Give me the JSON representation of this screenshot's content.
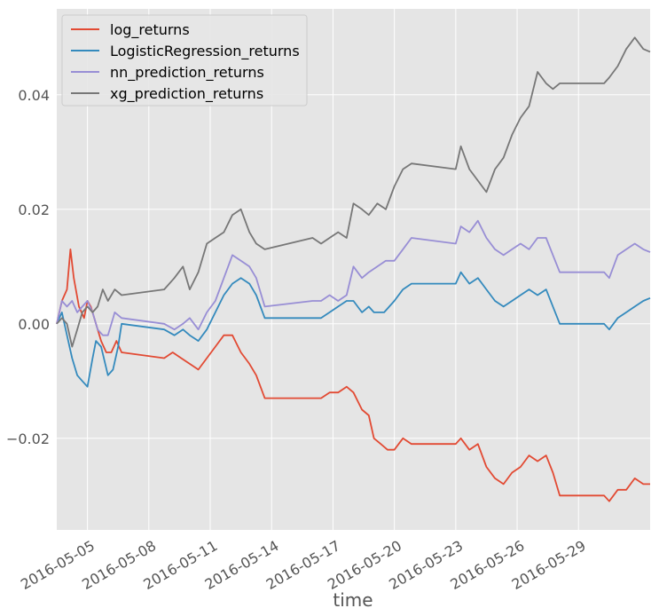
{
  "chart_data": {
    "type": "line",
    "title": "",
    "xlabel": "time",
    "ylabel": "",
    "xlim": [
      "2016-05-03T12:00",
      "2016-06-01T12:00"
    ],
    "ylim": [
      -0.036,
      0.055
    ],
    "grid": true,
    "legend_position": "top-left",
    "x_ticks": [
      "2016-05-05",
      "2016-05-08",
      "2016-05-11",
      "2016-05-14",
      "2016-05-17",
      "2016-05-20",
      "2016-05-23",
      "2016-05-26",
      "2016-05-29"
    ],
    "y_ticks": [
      -0.02,
      0.0,
      0.02,
      0.04
    ],
    "y_tick_labels": [
      "−0.02",
      "0.00",
      "0.02",
      "0.04"
    ],
    "series": [
      {
        "name": "log_returns",
        "color": "#E24A33",
        "points": [
          [
            "2016-05-03T12:00",
            0.0
          ],
          [
            "2016-05-03T18:00",
            0.004
          ],
          [
            "2016-05-04T00:00",
            0.006
          ],
          [
            "2016-05-04T04:00",
            0.013
          ],
          [
            "2016-05-04T08:00",
            0.008
          ],
          [
            "2016-05-04T14:00",
            0.003
          ],
          [
            "2016-05-04T20:00",
            0.001
          ],
          [
            "2016-05-05T00:00",
            0.004
          ],
          [
            "2016-05-05T04:00",
            0.003
          ],
          [
            "2016-05-05T10:00",
            0.0
          ],
          [
            "2016-05-05T16:00",
            -0.003
          ],
          [
            "2016-05-05T22:00",
            -0.005
          ],
          [
            "2016-05-06T04:00",
            -0.005
          ],
          [
            "2016-05-06T10:00",
            -0.003
          ],
          [
            "2016-05-06T16:00",
            -0.005
          ],
          [
            "2016-05-08T18:00",
            -0.006
          ],
          [
            "2016-05-09T04:00",
            -0.005
          ],
          [
            "2016-05-09T14:00",
            -0.006
          ],
          [
            "2016-05-10T00:00",
            -0.007
          ],
          [
            "2016-05-10T10:00",
            -0.008
          ],
          [
            "2016-05-10T20:00",
            -0.006
          ],
          [
            "2016-05-11T06:00",
            -0.004
          ],
          [
            "2016-05-11T16:00",
            -0.002
          ],
          [
            "2016-05-12T02:00",
            -0.002
          ],
          [
            "2016-05-12T12:00",
            -0.005
          ],
          [
            "2016-05-12T22:00",
            -0.007
          ],
          [
            "2016-05-13T06:00",
            -0.009
          ],
          [
            "2016-05-13T16:00",
            -0.013
          ],
          [
            "2016-05-16T00:00",
            -0.013
          ],
          [
            "2016-05-16T10:00",
            -0.013
          ],
          [
            "2016-05-16T20:00",
            -0.012
          ],
          [
            "2016-05-17T06:00",
            -0.012
          ],
          [
            "2016-05-17T16:00",
            -0.011
          ],
          [
            "2016-05-18T00:00",
            -0.012
          ],
          [
            "2016-05-18T10:00",
            -0.015
          ],
          [
            "2016-05-18T18:00",
            -0.016
          ],
          [
            "2016-05-19T00:00",
            -0.02
          ],
          [
            "2016-05-19T08:00",
            -0.021
          ],
          [
            "2016-05-19T16:00",
            -0.022
          ],
          [
            "2016-05-20T00:00",
            -0.022
          ],
          [
            "2016-05-20T10:00",
            -0.02
          ],
          [
            "2016-05-20T20:00",
            -0.021
          ],
          [
            "2016-05-23T00:00",
            -0.021
          ],
          [
            "2016-05-23T06:00",
            -0.02
          ],
          [
            "2016-05-23T16:00",
            -0.022
          ],
          [
            "2016-05-24T02:00",
            -0.021
          ],
          [
            "2016-05-24T12:00",
            -0.025
          ],
          [
            "2016-05-24T22:00",
            -0.027
          ],
          [
            "2016-05-25T08:00",
            -0.028
          ],
          [
            "2016-05-25T18:00",
            -0.026
          ],
          [
            "2016-05-26T04:00",
            -0.025
          ],
          [
            "2016-05-26T14:00",
            -0.023
          ],
          [
            "2016-05-27T00:00",
            -0.024
          ],
          [
            "2016-05-27T10:00",
            -0.023
          ],
          [
            "2016-05-27T18:00",
            -0.026
          ],
          [
            "2016-05-28T02:00",
            -0.03
          ],
          [
            "2016-05-30T06:00",
            -0.03
          ],
          [
            "2016-05-30T12:00",
            -0.031
          ],
          [
            "2016-05-30T22:00",
            -0.029
          ],
          [
            "2016-05-31T08:00",
            -0.029
          ],
          [
            "2016-05-31T18:00",
            -0.027
          ],
          [
            "2016-06-01T04:00",
            -0.028
          ],
          [
            "2016-06-01T12:00",
            -0.028
          ]
        ]
      },
      {
        "name": "LogisticRegression_returns",
        "color": "#348ABD",
        "points": [
          [
            "2016-05-03T12:00",
            0.0
          ],
          [
            "2016-05-03T18:00",
            0.002
          ],
          [
            "2016-05-04T00:00",
            -0.002
          ],
          [
            "2016-05-04T06:00",
            -0.006
          ],
          [
            "2016-05-04T12:00",
            -0.009
          ],
          [
            "2016-05-04T18:00",
            -0.01
          ],
          [
            "2016-05-05T00:00",
            -0.011
          ],
          [
            "2016-05-05T06:00",
            -0.006
          ],
          [
            "2016-05-05T10:00",
            -0.003
          ],
          [
            "2016-05-05T16:00",
            -0.004
          ],
          [
            "2016-05-06T00:00",
            -0.009
          ],
          [
            "2016-05-06T06:00",
            -0.008
          ],
          [
            "2016-05-06T12:00",
            -0.004
          ],
          [
            "2016-05-06T16:00",
            0.0
          ],
          [
            "2016-05-08T18:00",
            -0.001
          ],
          [
            "2016-05-09T06:00",
            -0.002
          ],
          [
            "2016-05-09T16:00",
            -0.001
          ],
          [
            "2016-05-10T00:00",
            -0.002
          ],
          [
            "2016-05-10T10:00",
            -0.003
          ],
          [
            "2016-05-10T20:00",
            -0.001
          ],
          [
            "2016-05-11T06:00",
            0.002
          ],
          [
            "2016-05-11T16:00",
            0.005
          ],
          [
            "2016-05-12T02:00",
            0.007
          ],
          [
            "2016-05-12T12:00",
            0.008
          ],
          [
            "2016-05-12T22:00",
            0.007
          ],
          [
            "2016-05-13T06:00",
            0.005
          ],
          [
            "2016-05-13T16:00",
            0.001
          ],
          [
            "2016-05-16T00:00",
            0.001
          ],
          [
            "2016-05-16T10:00",
            0.001
          ],
          [
            "2016-05-16T20:00",
            0.002
          ],
          [
            "2016-05-17T06:00",
            0.003
          ],
          [
            "2016-05-17T16:00",
            0.004
          ],
          [
            "2016-05-18T00:00",
            0.004
          ],
          [
            "2016-05-18T10:00",
            0.002
          ],
          [
            "2016-05-18T18:00",
            0.003
          ],
          [
            "2016-05-19T00:00",
            0.002
          ],
          [
            "2016-05-19T12:00",
            0.002
          ],
          [
            "2016-05-20T00:00",
            0.004
          ],
          [
            "2016-05-20T10:00",
            0.006
          ],
          [
            "2016-05-20T20:00",
            0.007
          ],
          [
            "2016-05-23T00:00",
            0.007
          ],
          [
            "2016-05-23T06:00",
            0.009
          ],
          [
            "2016-05-23T16:00",
            0.007
          ],
          [
            "2016-05-24T02:00",
            0.008
          ],
          [
            "2016-05-24T12:00",
            0.006
          ],
          [
            "2016-05-24T22:00",
            0.004
          ],
          [
            "2016-05-25T08:00",
            0.003
          ],
          [
            "2016-05-25T18:00",
            0.004
          ],
          [
            "2016-05-26T04:00",
            0.005
          ],
          [
            "2016-05-26T14:00",
            0.006
          ],
          [
            "2016-05-27T00:00",
            0.005
          ],
          [
            "2016-05-27T10:00",
            0.006
          ],
          [
            "2016-05-27T18:00",
            0.003
          ],
          [
            "2016-05-28T02:00",
            0.0
          ],
          [
            "2016-05-30T06:00",
            0.0
          ],
          [
            "2016-05-30T12:00",
            -0.001
          ],
          [
            "2016-05-30T22:00",
            0.001
          ],
          [
            "2016-05-31T08:00",
            0.002
          ],
          [
            "2016-05-31T18:00",
            0.003
          ],
          [
            "2016-06-01T04:00",
            0.004
          ],
          [
            "2016-06-01T12:00",
            0.0045
          ]
        ]
      },
      {
        "name": "nn_prediction_returns",
        "color": "#988ED5",
        "points": [
          [
            "2016-05-03T12:00",
            0.0
          ],
          [
            "2016-05-03T18:00",
            0.004
          ],
          [
            "2016-05-04T00:00",
            0.003
          ],
          [
            "2016-05-04T06:00",
            0.004
          ],
          [
            "2016-05-04T12:00",
            0.002
          ],
          [
            "2016-05-04T18:00",
            0.003
          ],
          [
            "2016-05-05T00:00",
            0.004
          ],
          [
            "2016-05-05T06:00",
            0.002
          ],
          [
            "2016-05-05T12:00",
            -0.001
          ],
          [
            "2016-05-05T18:00",
            -0.002
          ],
          [
            "2016-05-06T00:00",
            -0.002
          ],
          [
            "2016-05-06T08:00",
            0.002
          ],
          [
            "2016-05-06T16:00",
            0.001
          ],
          [
            "2016-05-08T18:00",
            0.0
          ],
          [
            "2016-05-09T06:00",
            -0.001
          ],
          [
            "2016-05-09T16:00",
            0.0
          ],
          [
            "2016-05-10T00:00",
            0.001
          ],
          [
            "2016-05-10T10:00",
            -0.001
          ],
          [
            "2016-05-10T20:00",
            0.002
          ],
          [
            "2016-05-11T06:00",
            0.004
          ],
          [
            "2016-05-11T16:00",
            0.008
          ],
          [
            "2016-05-12T02:00",
            0.012
          ],
          [
            "2016-05-12T12:00",
            0.011
          ],
          [
            "2016-05-12T22:00",
            0.01
          ],
          [
            "2016-05-13T06:00",
            0.008
          ],
          [
            "2016-05-13T16:00",
            0.003
          ],
          [
            "2016-05-16T00:00",
            0.004
          ],
          [
            "2016-05-16T10:00",
            0.004
          ],
          [
            "2016-05-16T20:00",
            0.005
          ],
          [
            "2016-05-17T06:00",
            0.004
          ],
          [
            "2016-05-17T16:00",
            0.005
          ],
          [
            "2016-05-18T00:00",
            0.01
          ],
          [
            "2016-05-18T10:00",
            0.008
          ],
          [
            "2016-05-18T18:00",
            0.009
          ],
          [
            "2016-05-19T04:00",
            0.01
          ],
          [
            "2016-05-19T14:00",
            0.011
          ],
          [
            "2016-05-20T00:00",
            0.011
          ],
          [
            "2016-05-20T10:00",
            0.013
          ],
          [
            "2016-05-20T20:00",
            0.015
          ],
          [
            "2016-05-23T00:00",
            0.014
          ],
          [
            "2016-05-23T06:00",
            0.017
          ],
          [
            "2016-05-23T16:00",
            0.016
          ],
          [
            "2016-05-24T02:00",
            0.018
          ],
          [
            "2016-05-24T12:00",
            0.015
          ],
          [
            "2016-05-24T22:00",
            0.013
          ],
          [
            "2016-05-25T08:00",
            0.012
          ],
          [
            "2016-05-25T18:00",
            0.013
          ],
          [
            "2016-05-26T04:00",
            0.014
          ],
          [
            "2016-05-26T14:00",
            0.013
          ],
          [
            "2016-05-27T00:00",
            0.015
          ],
          [
            "2016-05-27T10:00",
            0.015
          ],
          [
            "2016-05-27T18:00",
            0.012
          ],
          [
            "2016-05-28T02:00",
            0.009
          ],
          [
            "2016-05-30T06:00",
            0.009
          ],
          [
            "2016-05-30T12:00",
            0.008
          ],
          [
            "2016-05-30T22:00",
            0.012
          ],
          [
            "2016-05-31T08:00",
            0.013
          ],
          [
            "2016-05-31T18:00",
            0.014
          ],
          [
            "2016-06-01T04:00",
            0.013
          ],
          [
            "2016-06-01T12:00",
            0.0125
          ]
        ]
      },
      {
        "name": "xg_prediction_returns",
        "color": "#777777",
        "points": [
          [
            "2016-05-03T12:00",
            0.0
          ],
          [
            "2016-05-03T18:00",
            0.001
          ],
          [
            "2016-05-04T00:00",
            0.0
          ],
          [
            "2016-05-04T06:00",
            -0.004
          ],
          [
            "2016-05-04T12:00",
            -0.001
          ],
          [
            "2016-05-04T18:00",
            0.002
          ],
          [
            "2016-05-05T00:00",
            0.003
          ],
          [
            "2016-05-05T06:00",
            0.002
          ],
          [
            "2016-05-05T12:00",
            0.003
          ],
          [
            "2016-05-05T18:00",
            0.006
          ],
          [
            "2016-05-06T00:00",
            0.004
          ],
          [
            "2016-05-06T08:00",
            0.006
          ],
          [
            "2016-05-06T16:00",
            0.005
          ],
          [
            "2016-05-08T18:00",
            0.006
          ],
          [
            "2016-05-09T06:00",
            0.008
          ],
          [
            "2016-05-09T16:00",
            0.01
          ],
          [
            "2016-05-10T00:00",
            0.006
          ],
          [
            "2016-05-10T10:00",
            0.009
          ],
          [
            "2016-05-10T20:00",
            0.014
          ],
          [
            "2016-05-11T06:00",
            0.015
          ],
          [
            "2016-05-11T16:00",
            0.016
          ],
          [
            "2016-05-12T02:00",
            0.019
          ],
          [
            "2016-05-12T12:00",
            0.02
          ],
          [
            "2016-05-12T22:00",
            0.016
          ],
          [
            "2016-05-13T06:00",
            0.014
          ],
          [
            "2016-05-13T16:00",
            0.013
          ],
          [
            "2016-05-16T00:00",
            0.015
          ],
          [
            "2016-05-16T10:00",
            0.014
          ],
          [
            "2016-05-16T20:00",
            0.015
          ],
          [
            "2016-05-17T06:00",
            0.016
          ],
          [
            "2016-05-17T16:00",
            0.015
          ],
          [
            "2016-05-18T00:00",
            0.021
          ],
          [
            "2016-05-18T10:00",
            0.02
          ],
          [
            "2016-05-18T18:00",
            0.019
          ],
          [
            "2016-05-19T04:00",
            0.021
          ],
          [
            "2016-05-19T14:00",
            0.02
          ],
          [
            "2016-05-20T00:00",
            0.024
          ],
          [
            "2016-05-20T10:00",
            0.027
          ],
          [
            "2016-05-20T20:00",
            0.028
          ],
          [
            "2016-05-23T00:00",
            0.027
          ],
          [
            "2016-05-23T06:00",
            0.031
          ],
          [
            "2016-05-23T16:00",
            0.027
          ],
          [
            "2016-05-24T02:00",
            0.025
          ],
          [
            "2016-05-24T12:00",
            0.023
          ],
          [
            "2016-05-24T22:00",
            0.027
          ],
          [
            "2016-05-25T08:00",
            0.029
          ],
          [
            "2016-05-25T18:00",
            0.033
          ],
          [
            "2016-05-26T04:00",
            0.036
          ],
          [
            "2016-05-26T14:00",
            0.038
          ],
          [
            "2016-05-27T00:00",
            0.044
          ],
          [
            "2016-05-27T10:00",
            0.042
          ],
          [
            "2016-05-27T18:00",
            0.041
          ],
          [
            "2016-05-28T02:00",
            0.042
          ],
          [
            "2016-05-30T06:00",
            0.042
          ],
          [
            "2016-05-30T12:00",
            0.043
          ],
          [
            "2016-05-30T22:00",
            0.045
          ],
          [
            "2016-05-31T08:00",
            0.048
          ],
          [
            "2016-05-31T18:00",
            0.05
          ],
          [
            "2016-06-01T04:00",
            0.048
          ],
          [
            "2016-06-01T12:00",
            0.0475
          ]
        ]
      }
    ]
  }
}
